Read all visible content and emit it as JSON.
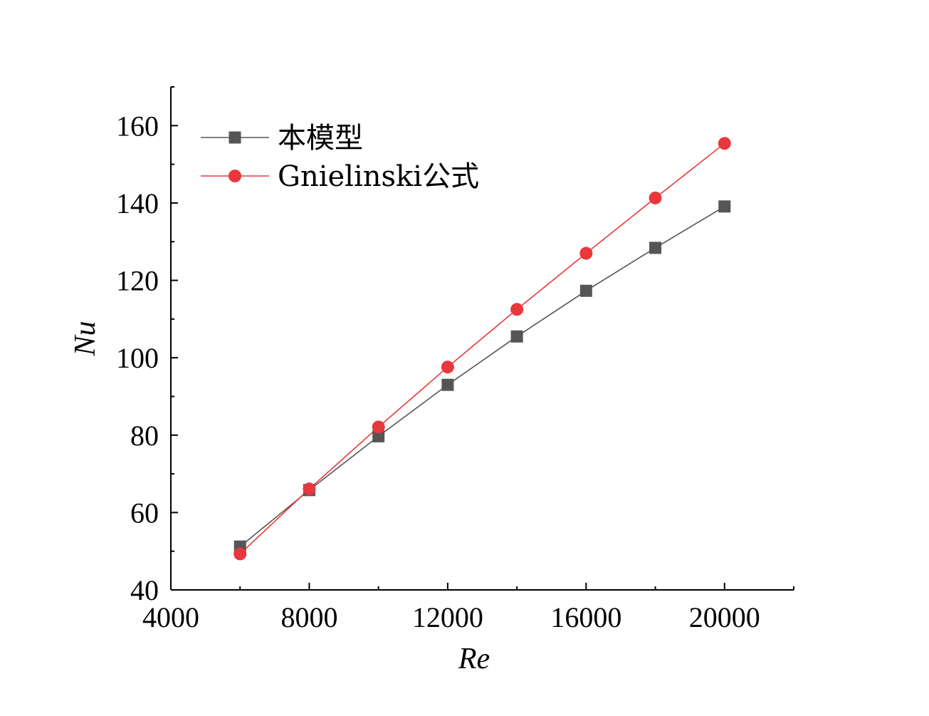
{
  "chart_data": {
    "type": "line",
    "xlabel": "Re",
    "ylabel": "Nu",
    "xlim": [
      4000,
      22000
    ],
    "ylim": [
      40,
      170
    ],
    "x_ticks": [
      4000,
      8000,
      12000,
      16000,
      20000
    ],
    "y_ticks": [
      40,
      60,
      80,
      100,
      120,
      140,
      160
    ],
    "x_tick_labels": [
      "4000",
      "8000",
      "12000",
      "16000",
      "20000"
    ],
    "y_tick_labels": [
      "40",
      "60",
      "80",
      "100",
      "120",
      "140",
      "160"
    ],
    "x_minor_step": 2000,
    "y_minor_step": 10,
    "grid": false,
    "legend_position": "top-left",
    "x": [
      6000,
      8000,
      10000,
      12000,
      14000,
      16000,
      18000,
      20000
    ],
    "series": [
      {
        "name": "本模型",
        "marker": "square",
        "color": "#555555",
        "values": [
          51.2,
          65.8,
          79.7,
          93.0,
          105.5,
          117.3,
          128.4,
          139.1
        ]
      },
      {
        "name": "Gnielinski公式",
        "marker": "circle",
        "color": "#e8383d",
        "values": [
          49.3,
          66.1,
          82.1,
          97.6,
          112.5,
          127.0,
          141.3,
          155.4
        ]
      }
    ]
  }
}
